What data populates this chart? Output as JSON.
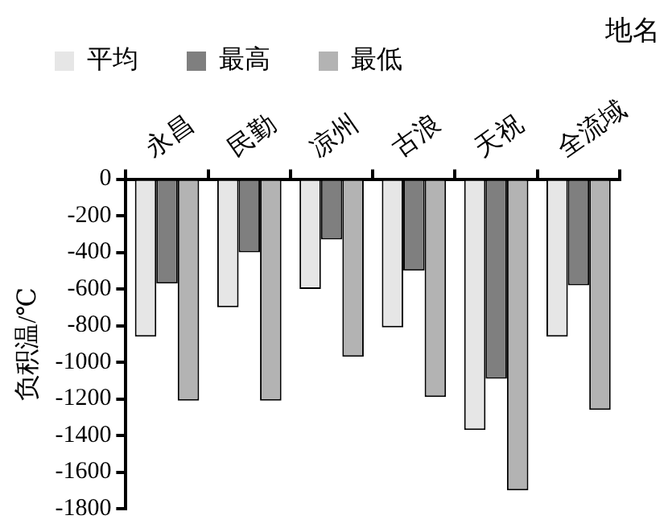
{
  "chart_data": {
    "type": "bar",
    "xlabel": "地名",
    "ylabel": "负积温/℃",
    "categories": [
      "永昌",
      "民勤",
      "凉州",
      "古浪",
      "天祝",
      "全流域"
    ],
    "series": [
      {
        "name": "平均",
        "color": "#e6e6e6",
        "values": [
          -860,
          -700,
          -600,
          -810,
          -1370,
          -860
        ]
      },
      {
        "name": "最高",
        "color": "#7f7f7f",
        "values": [
          -570,
          -400,
          -330,
          -500,
          -1090,
          -580
        ]
      },
      {
        "name": "最低",
        "color": "#b3b3b3",
        "values": [
          -1210,
          -1210,
          -970,
          -1190,
          -1700,
          -1260
        ]
      }
    ],
    "ylim": [
      -1800,
      0
    ],
    "yticks": [
      0,
      -200,
      -400,
      -600,
      -800,
      -1000,
      -1200,
      -1400,
      -1600,
      -1800
    ],
    "grid": false,
    "legend": "top left"
  }
}
